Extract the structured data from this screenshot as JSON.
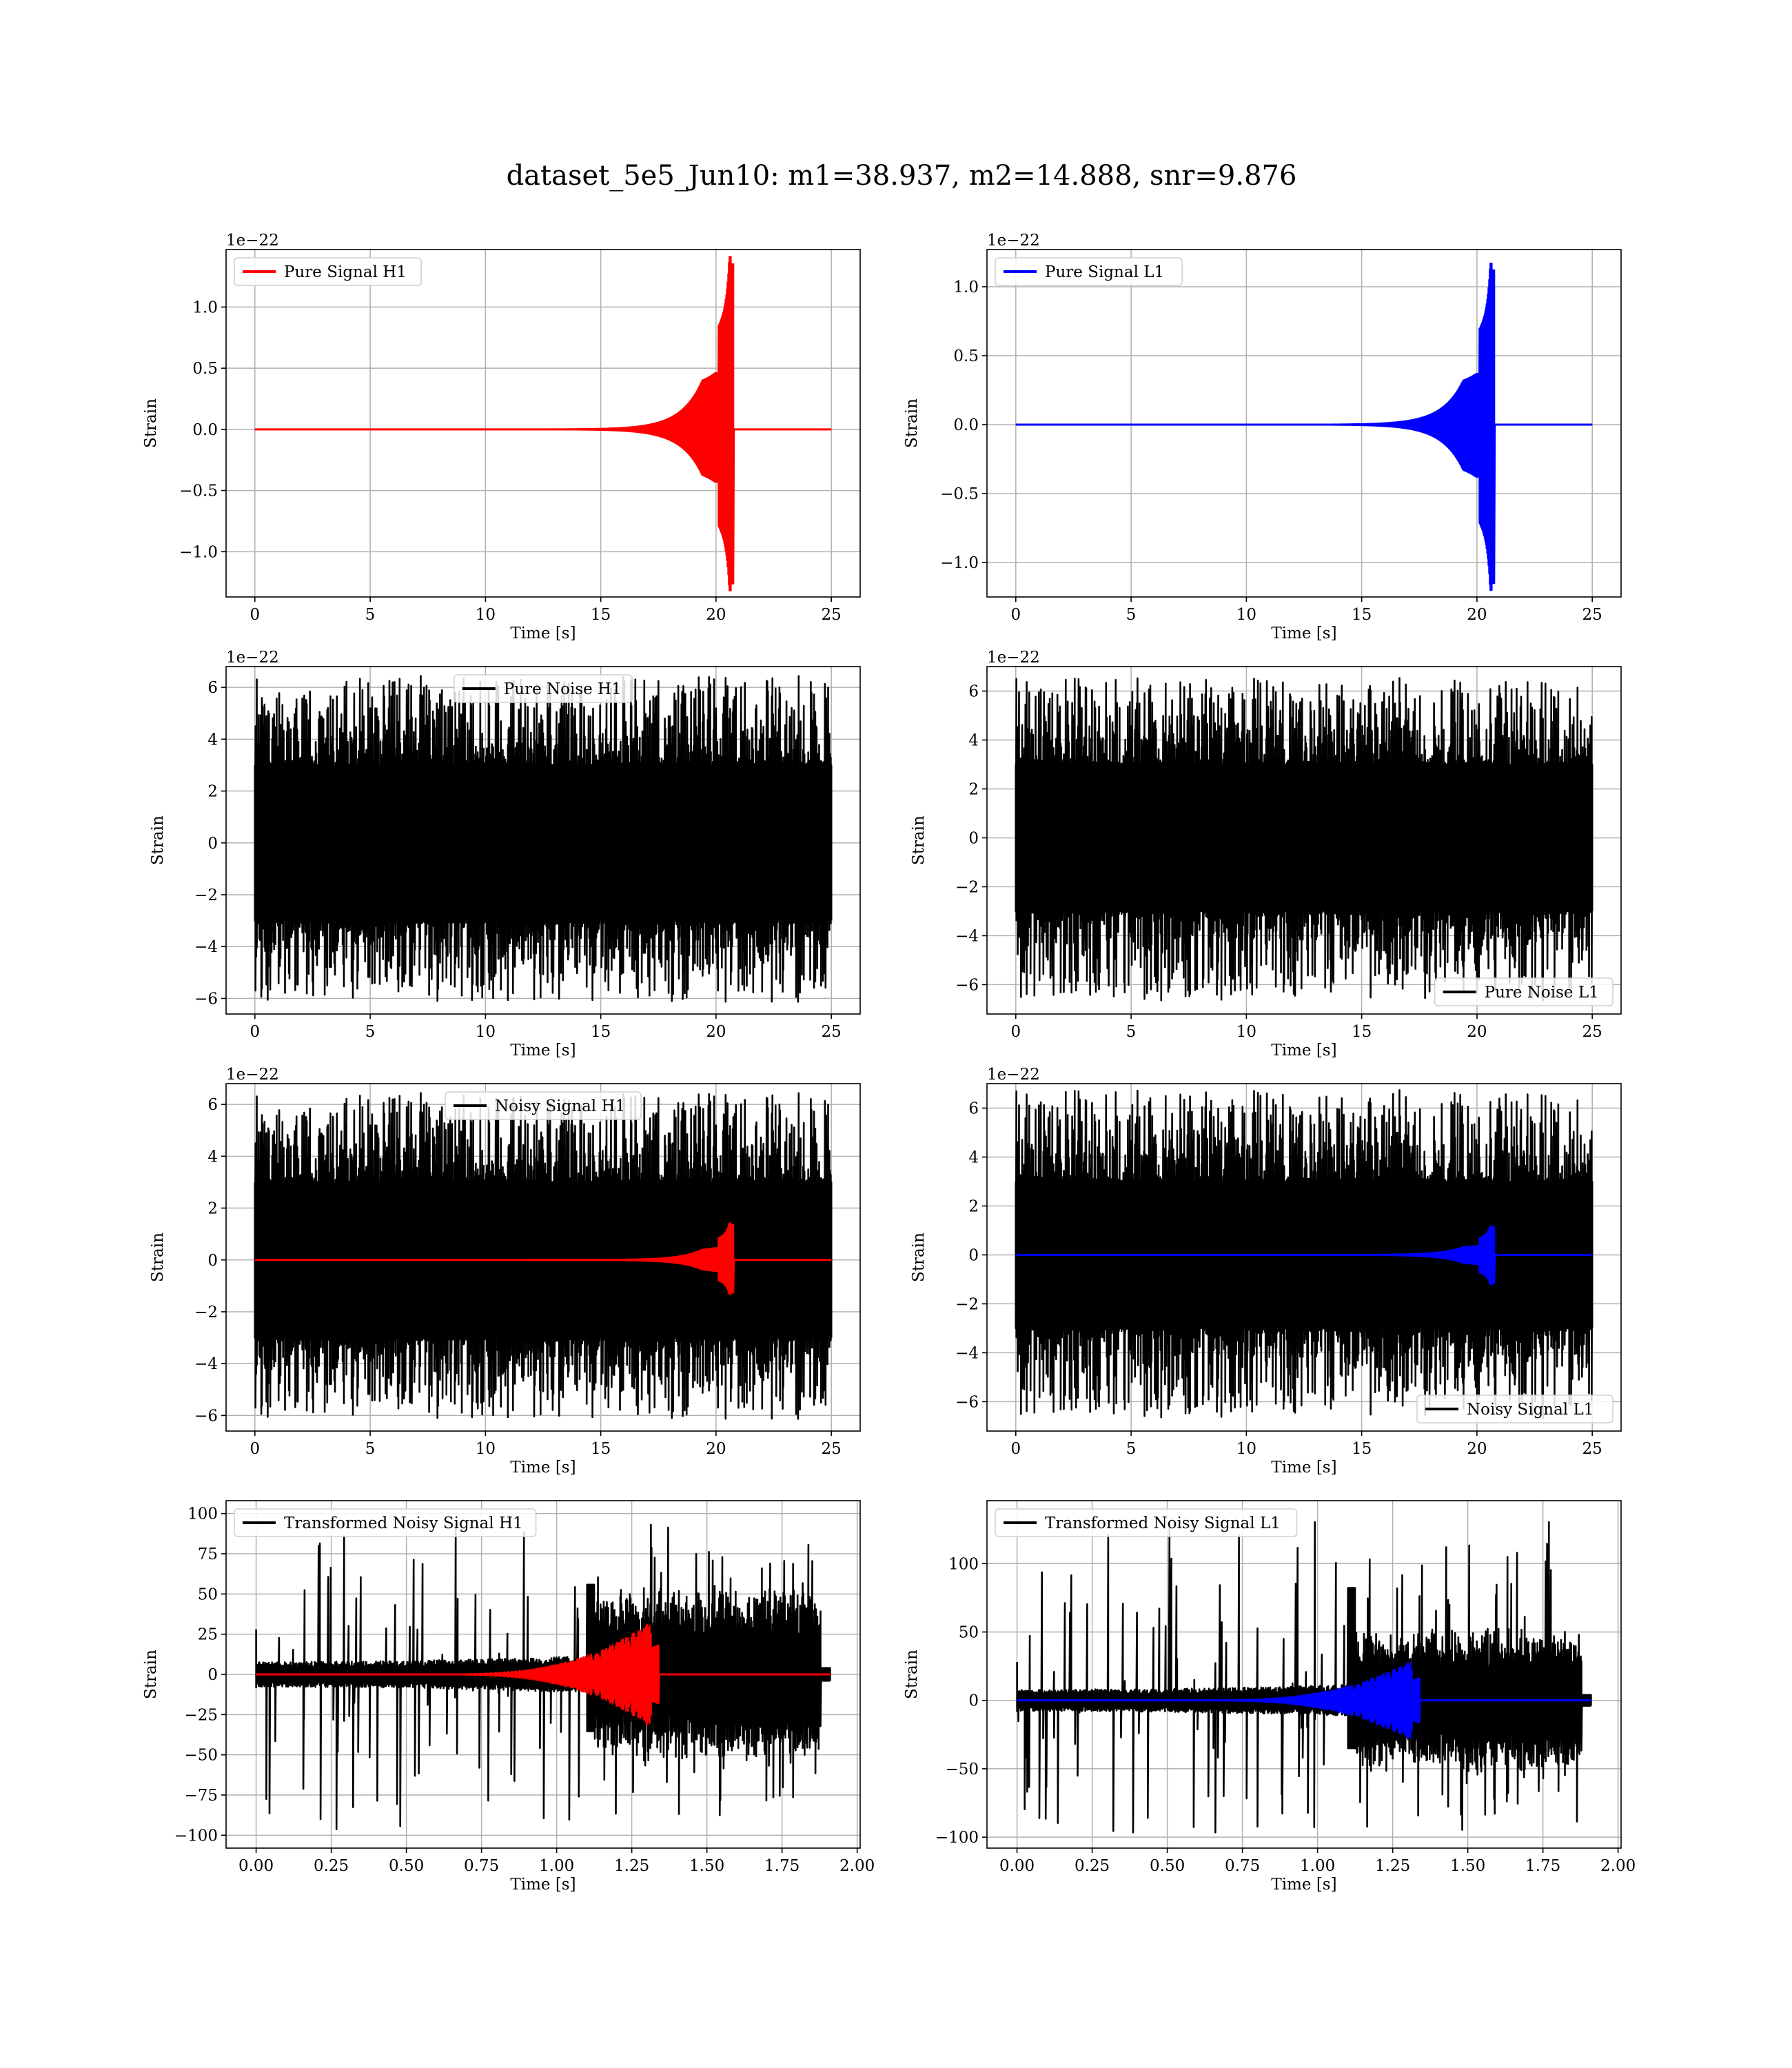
{
  "figure": {
    "title": "dataset_5e5_Jun10: m1=38.937, m2=14.888, snr=9.876",
    "colors": {
      "h1": "#ff0000",
      "l1": "#0000ff",
      "noise": "#000000",
      "grid": "#b0b0b0"
    }
  },
  "chart_data": [
    {
      "type": "line",
      "id": "pure-signal-h1",
      "xlabel": "Time [s]",
      "ylabel": "Strain",
      "offset_text": "1e−22",
      "xlim": [
        -1.25,
        26.25
      ],
      "ylim": [
        -1.37,
        1.47
      ],
      "xticks": [
        0,
        5,
        10,
        15,
        20,
        25
      ],
      "xtick_labels": [
        "0",
        "5",
        "10",
        "15",
        "20",
        "25"
      ],
      "yticks": [
        -1.0,
        -0.5,
        0.0,
        0.5,
        1.0
      ],
      "ytick_labels": [
        "−1.0",
        "−0.5",
        "0.0",
        "0.5",
        "1.0"
      ],
      "legend": {
        "position": "upper-left",
        "entries": [
          {
            "label": "Pure Signal H1",
            "color": "#ff0000"
          }
        ]
      },
      "series": [
        {
          "name": "Pure Signal H1",
          "color": "#ff0000",
          "kind": "chirp",
          "start": 0,
          "end": 25,
          "merger": 20.7,
          "peak_pos": 1.35,
          "peak_neg": -1.26,
          "plateau_start": 19.4,
          "plateau": 0.4
        }
      ]
    },
    {
      "type": "line",
      "id": "pure-signal-l1",
      "xlabel": "Time [s]",
      "ylabel": "Strain",
      "offset_text": "1e−22",
      "xlim": [
        -1.25,
        26.25
      ],
      "ylim": [
        -1.25,
        1.27
      ],
      "xticks": [
        0,
        5,
        10,
        15,
        20,
        25
      ],
      "xtick_labels": [
        "0",
        "5",
        "10",
        "15",
        "20",
        "25"
      ],
      "yticks": [
        -1.0,
        -0.5,
        0.0,
        0.5,
        1.0
      ],
      "ytick_labels": [
        "−1.0",
        "−0.5",
        "0.0",
        "0.5",
        "1.0"
      ],
      "legend": {
        "position": "upper-left",
        "entries": [
          {
            "label": "Pure Signal L1",
            "color": "#0000ff"
          }
        ]
      },
      "series": [
        {
          "name": "Pure Signal L1",
          "color": "#0000ff",
          "kind": "chirp",
          "start": 0,
          "end": 25,
          "merger": 20.7,
          "peak_pos": 1.12,
          "peak_neg": -1.15,
          "plateau_start": 19.4,
          "plateau": 0.32
        }
      ]
    },
    {
      "type": "line",
      "id": "pure-noise-h1",
      "xlabel": "Time [s]",
      "ylabel": "Strain",
      "offset_text": "1e−22",
      "xlim": [
        -1.25,
        26.25
      ],
      "ylim": [
        -6.6,
        6.8
      ],
      "xticks": [
        0,
        5,
        10,
        15,
        20,
        25
      ],
      "xtick_labels": [
        "0",
        "5",
        "10",
        "15",
        "20",
        "25"
      ],
      "yticks": [
        -6,
        -4,
        -2,
        0,
        2,
        4,
        6
      ],
      "ytick_labels": [
        "−6",
        "−4",
        "−2",
        "0",
        "2",
        "4",
        "6"
      ],
      "legend": {
        "position": "upper-center",
        "entries": [
          {
            "label": "Pure Noise H1",
            "color": "#000000"
          }
        ]
      },
      "series": [
        {
          "name": "Pure Noise H1",
          "color": "#000000",
          "kind": "noise",
          "start": 0,
          "end": 25,
          "core": 3.0,
          "max": 6.4,
          "min": -6.1,
          "seed": 11
        }
      ]
    },
    {
      "type": "line",
      "id": "pure-noise-l1",
      "xlabel": "Time [s]",
      "ylabel": "Strain",
      "offset_text": "1e−22",
      "xlim": [
        -1.25,
        26.25
      ],
      "ylim": [
        -7.2,
        7.0
      ],
      "xticks": [
        0,
        5,
        10,
        15,
        20,
        25
      ],
      "xtick_labels": [
        "0",
        "5",
        "10",
        "15",
        "20",
        "25"
      ],
      "yticks": [
        -6,
        -4,
        -2,
        0,
        2,
        4,
        6
      ],
      "ytick_labels": [
        "−6",
        "−4",
        "−2",
        "0",
        "2",
        "4",
        "6"
      ],
      "legend": {
        "position": "lower-right",
        "entries": [
          {
            "label": "Pure Noise L1",
            "color": "#000000"
          }
        ]
      },
      "series": [
        {
          "name": "Pure Noise L1",
          "color": "#000000",
          "kind": "noise",
          "start": 0,
          "end": 25,
          "core": 3.0,
          "max": 6.5,
          "min": -6.6,
          "seed": 23
        }
      ]
    },
    {
      "type": "line",
      "id": "noisy-signal-h1",
      "xlabel": "Time [s]",
      "ylabel": "Strain",
      "offset_text": "1e−22",
      "xlim": [
        -1.25,
        26.25
      ],
      "ylim": [
        -6.6,
        6.8
      ],
      "xticks": [
        0,
        5,
        10,
        15,
        20,
        25
      ],
      "xtick_labels": [
        "0",
        "5",
        "10",
        "15",
        "20",
        "25"
      ],
      "yticks": [
        -6,
        -4,
        -2,
        0,
        2,
        4,
        6
      ],
      "ytick_labels": [
        "−6",
        "−4",
        "−2",
        "0",
        "2",
        "4",
        "6"
      ],
      "legend": {
        "position": "upper-center",
        "entries": [
          {
            "label": "Noisy Signal H1",
            "color": "#000000"
          }
        ]
      },
      "series": [
        {
          "name": "Noisy Signal H1",
          "color": "#000000",
          "kind": "noise",
          "start": 0,
          "end": 25,
          "core": 3.0,
          "max": 6.4,
          "min": -6.1,
          "seed": 11
        },
        {
          "color": "#ff0000",
          "kind": "chirp",
          "start": 0,
          "end": 25,
          "merger": 20.7,
          "peak_pos": 1.35,
          "peak_neg": -1.26,
          "plateau_start": 19.4,
          "plateau": 0.4
        }
      ]
    },
    {
      "type": "line",
      "id": "noisy-signal-l1",
      "xlabel": "Time [s]",
      "ylabel": "Strain",
      "offset_text": "1e−22",
      "xlim": [
        -1.25,
        26.25
      ],
      "ylim": [
        -7.2,
        7.0
      ],
      "xticks": [
        0,
        5,
        10,
        15,
        20,
        25
      ],
      "xtick_labels": [
        "0",
        "5",
        "10",
        "15",
        "20",
        "25"
      ],
      "yticks": [
        -6,
        -4,
        -2,
        0,
        2,
        4,
        6
      ],
      "ytick_labels": [
        "−6",
        "−4",
        "−2",
        "0",
        "2",
        "4",
        "6"
      ],
      "legend": {
        "position": "lower-right",
        "entries": [
          {
            "label": "Noisy Signal L1",
            "color": "#000000"
          }
        ]
      },
      "series": [
        {
          "name": "Noisy Signal L1",
          "color": "#000000",
          "kind": "noise",
          "start": 0,
          "end": 25,
          "core": 3.0,
          "max": 6.7,
          "min": -6.6,
          "seed": 23
        },
        {
          "color": "#0000ff",
          "kind": "chirp",
          "start": 0,
          "end": 25,
          "merger": 20.7,
          "peak_pos": 1.12,
          "peak_neg": -1.15,
          "plateau_start": 19.4,
          "plateau": 0.32
        }
      ]
    },
    {
      "type": "line",
      "id": "transformed-noisy-signal-h1",
      "xlabel": "Time [s]",
      "ylabel": "Strain",
      "offset_text": "",
      "xlim": [
        -0.1,
        2.01
      ],
      "ylim": [
        -108,
        108
      ],
      "xticks": [
        0.0,
        0.25,
        0.5,
        0.75,
        1.0,
        1.25,
        1.5,
        1.75,
        2.0
      ],
      "xtick_labels": [
        "0.00",
        "0.25",
        "0.50",
        "0.75",
        "1.00",
        "1.25",
        "1.50",
        "1.75",
        "2.00"
      ],
      "yticks": [
        -100,
        -75,
        -50,
        -25,
        0,
        25,
        50,
        75,
        100
      ],
      "ytick_labels": [
        "−100",
        "−75",
        "−50",
        "−25",
        "0",
        "25",
        "50",
        "75",
        "100"
      ],
      "legend": {
        "position": "upper-left",
        "entries": [
          {
            "label": "Transformed Noisy Signal H1",
            "color": "#000000"
          }
        ]
      },
      "series": [
        {
          "name": "Transformed Noisy Signal H1",
          "color": "#000000",
          "kind": "whitened",
          "start": 0,
          "end": 1.91,
          "merger": 1.335,
          "pre": 7,
          "post": 45,
          "max": 93,
          "min": -101,
          "seed": 31
        },
        {
          "color": "#ff0000",
          "kind": "wchirp",
          "start": 0,
          "end": 1.91,
          "merger": 1.335,
          "peak": 36,
          "onset": 0.55
        }
      ]
    },
    {
      "type": "line",
      "id": "transformed-noisy-signal-l1",
      "xlabel": "Time [s]",
      "ylabel": "Strain",
      "offset_text": "",
      "xlim": [
        -0.1,
        2.01
      ],
      "ylim": [
        -108,
        146
      ],
      "xticks": [
        0.0,
        0.25,
        0.5,
        0.75,
        1.0,
        1.25,
        1.5,
        1.75,
        2.0
      ],
      "xtick_labels": [
        "0.00",
        "0.25",
        "0.50",
        "0.75",
        "1.00",
        "1.25",
        "1.50",
        "1.75",
        "2.00"
      ],
      "yticks": [
        -100,
        -50,
        0,
        50,
        100
      ],
      "ytick_labels": [
        "−100",
        "−50",
        "0",
        "50",
        "100"
      ],
      "legend": {
        "position": "upper-left",
        "entries": [
          {
            "label": "Transformed Noisy Signal L1",
            "color": "#000000"
          }
        ]
      },
      "series": [
        {
          "name": "Transformed Noisy Signal L1",
          "color": "#000000",
          "kind": "whitened",
          "start": 0,
          "end": 1.91,
          "merger": 1.335,
          "pre": 7,
          "post": 42,
          "max": 137,
          "min": -100,
          "seed": 47
        },
        {
          "color": "#0000ff",
          "kind": "wchirp",
          "start": 0,
          "end": 1.91,
          "merger": 1.335,
          "peak": 32,
          "onset": 0.55
        }
      ]
    }
  ]
}
